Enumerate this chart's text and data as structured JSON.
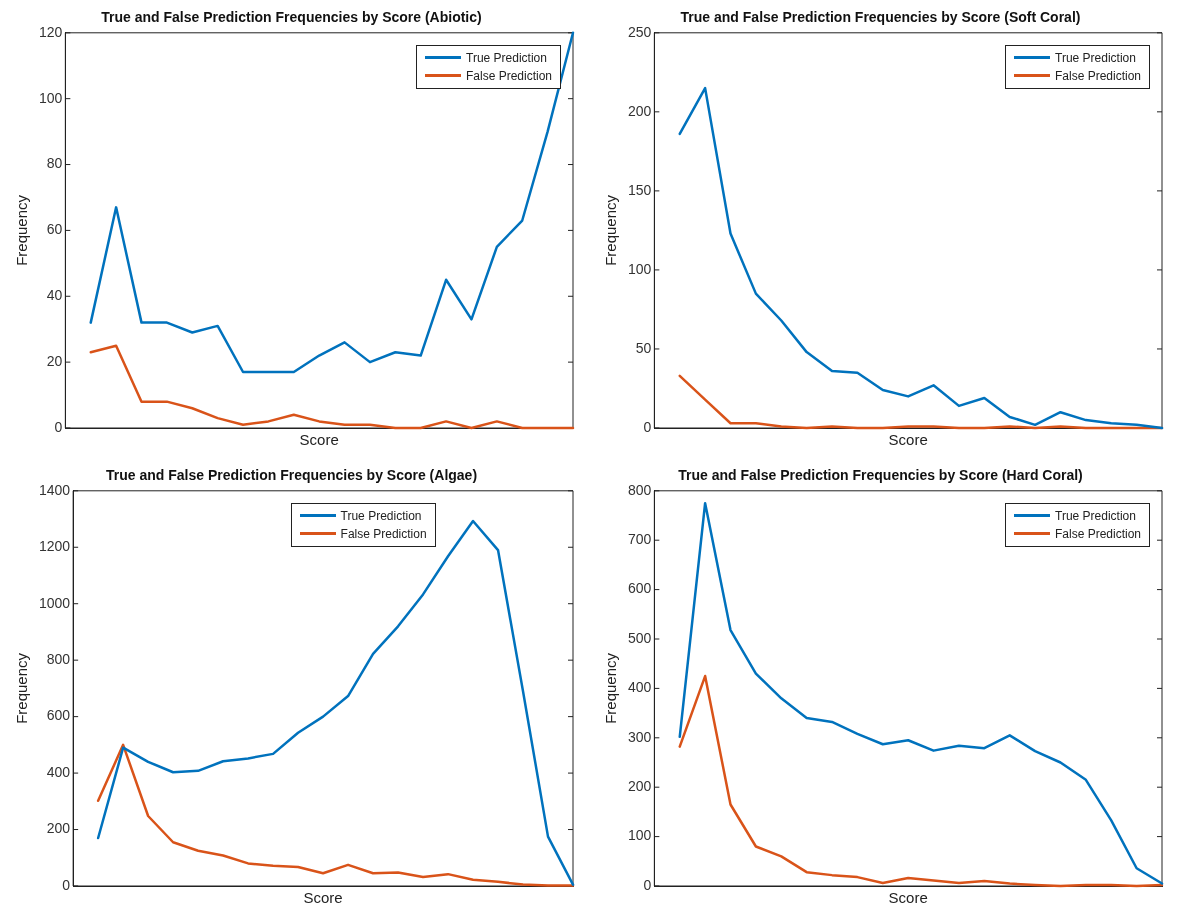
{
  "chart_data": [
    {
      "type": "line",
      "title": "True and False Prediction Frequencies by Score (Abiotic)",
      "xlabel": "Score",
      "ylabel": "Frequency",
      "categories": [
        null,
        null,
        null,
        null,
        null,
        null,
        null,
        null,
        null,
        null,
        null,
        null,
        null,
        null,
        null,
        null,
        null,
        null,
        null,
        null
      ],
      "ylim": [
        0,
        120
      ],
      "yticks": [
        0,
        20,
        40,
        60,
        80,
        100,
        120
      ],
      "grid": false,
      "legend": "top right",
      "marker": "none",
      "line_style": "solid",
      "series": [
        {
          "name": "True Prediction",
          "color": "#0072bd",
          "values": [
            32,
            67,
            32,
            32,
            29,
            31,
            17,
            17,
            17,
            22,
            26,
            20,
            23,
            22,
            45,
            33,
            55,
            63,
            90,
            120
          ]
        },
        {
          "name": "False Prediction",
          "color": "#d95319",
          "values": [
            23,
            25,
            8,
            8,
            6,
            3,
            1,
            2,
            4,
            2,
            1,
            1,
            0,
            0,
            2,
            0,
            2,
            0,
            0,
            0
          ]
        }
      ]
    },
    {
      "type": "line",
      "title": "True and False Prediction Frequencies by Score (Soft Coral)",
      "xlabel": "Score",
      "ylabel": "Frequency",
      "categories": [
        null,
        null,
        null,
        null,
        null,
        null,
        null,
        null,
        null,
        null,
        null,
        null,
        null,
        null,
        null,
        null,
        null,
        null,
        null,
        null
      ],
      "ylim": [
        0,
        250
      ],
      "yticks": [
        0,
        50,
        100,
        150,
        200,
        250
      ],
      "grid": false,
      "legend": "top right",
      "marker": "none",
      "line_style": "solid",
      "series": [
        {
          "name": "True Prediction",
          "color": "#0072bd",
          "values": [
            186,
            215,
            123,
            85,
            68,
            48,
            36,
            35,
            24,
            20,
            27,
            14,
            19,
            7,
            2,
            10,
            5,
            3,
            2,
            0
          ]
        },
        {
          "name": "False Prediction",
          "color": "#d95319",
          "values": [
            33,
            18,
            3,
            3,
            1,
            0,
            1,
            0,
            0,
            1,
            1,
            0,
            0,
            1,
            0,
            1,
            0,
            0,
            0,
            0
          ]
        }
      ]
    },
    {
      "type": "line",
      "title": "True and False Prediction Frequencies by Score (Algae)",
      "xlabel": "Score",
      "ylabel": "Frequency",
      "categories": [
        null,
        null,
        null,
        null,
        null,
        null,
        null,
        null,
        null,
        null,
        null,
        null,
        null,
        null,
        null,
        null,
        null,
        null,
        null,
        null
      ],
      "ylim": [
        0,
        1400
      ],
      "yticks": [
        0,
        200,
        400,
        600,
        800,
        1000,
        1200,
        1400
      ],
      "grid": false,
      "legend": "top",
      "marker": "none",
      "line_style": "solid",
      "series": [
        {
          "name": "True Prediction",
          "color": "#0072bd",
          "values": [
            170,
            490,
            440,
            403,
            408,
            442,
            452,
            468,
            543,
            600,
            673,
            822,
            920,
            1033,
            1168,
            1293,
            1190,
            690,
            175,
            5
          ]
        },
        {
          "name": "False Prediction",
          "color": "#d95319",
          "values": [
            302,
            500,
            248,
            155,
            125,
            108,
            80,
            72,
            67,
            45,
            75,
            45,
            48,
            32,
            42,
            22,
            15,
            5,
            2,
            2
          ]
        }
      ]
    },
    {
      "type": "line",
      "title": "True and False Prediction Frequencies by Score (Hard Coral)",
      "xlabel": "Score",
      "ylabel": "Frequency",
      "categories": [
        null,
        null,
        null,
        null,
        null,
        null,
        null,
        null,
        null,
        null,
        null,
        null,
        null,
        null,
        null,
        null,
        null,
        null,
        null,
        null
      ],
      "ylim": [
        0,
        800
      ],
      "yticks": [
        0,
        100,
        200,
        300,
        400,
        500,
        600,
        700,
        800
      ],
      "grid": false,
      "legend": "top right",
      "marker": "none",
      "line_style": "solid",
      "series": [
        {
          "name": "True Prediction",
          "color": "#0072bd",
          "values": [
            302,
            775,
            518,
            430,
            380,
            340,
            332,
            308,
            287,
            295,
            274,
            284,
            279,
            305,
            273,
            250,
            215,
            133,
            36,
            5
          ]
        },
        {
          "name": "False Prediction",
          "color": "#d95319",
          "values": [
            282,
            425,
            165,
            80,
            60,
            28,
            22,
            18,
            6,
            16,
            11,
            6,
            10,
            5,
            2,
            0,
            2,
            2,
            0,
            2
          ]
        }
      ]
    }
  ]
}
